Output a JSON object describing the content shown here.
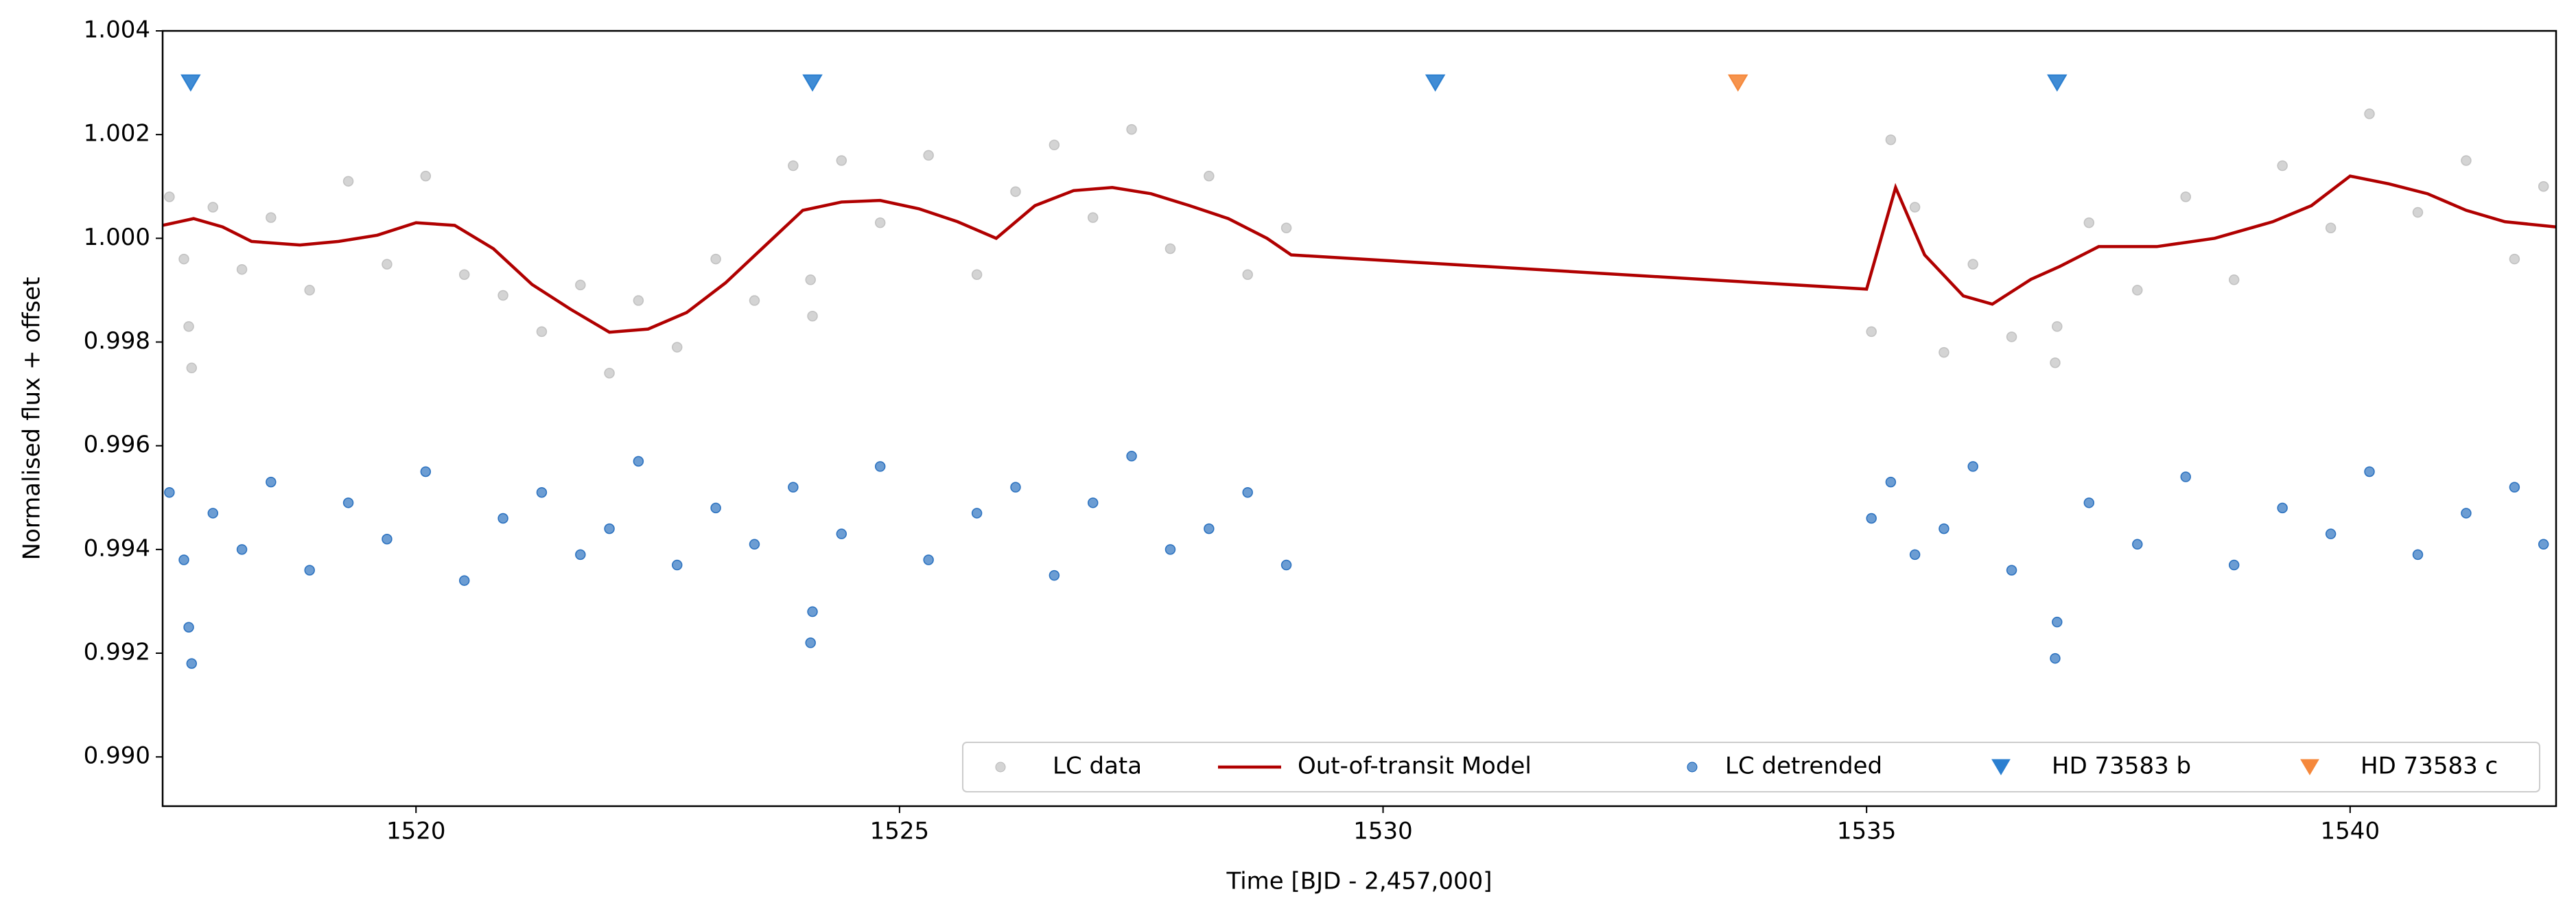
{
  "chart_data": {
    "type": "scatter",
    "xlabel": "Time [BJD - 2,457,000]",
    "ylabel": "Normalised flux + offset",
    "xlim": [
      1517.38,
      1542.13
    ],
    "ylim": [
      0.98905,
      1.004
    ],
    "xticks": [
      1520,
      1525,
      1530,
      1535,
      1540
    ],
    "yticks": [
      {
        "value": 0.99,
        "label": "0.990"
      },
      0.992,
      0.994,
      0.996,
      0.998,
      {
        "value": 1,
        "label": "1.000"
      },
      1.002,
      1.004
    ],
    "grid": false,
    "legend": "lower right",
    "series": [
      {
        "name": "LC data",
        "type": "scatter",
        "color": "#b8b8b8",
        "x": [
          1517.45,
          1517.6,
          1517.65,
          1517.68,
          1517.9,
          1518.2,
          1518.5,
          1518.9,
          1519.3,
          1519.7,
          1520.1,
          1520.5,
          1520.9,
          1521.3,
          1521.7,
          1522.0,
          1522.3,
          1522.7,
          1523.1,
          1523.5,
          1523.9,
          1524.08,
          1524.1,
          1524.4,
          1524.8,
          1525.3,
          1525.8,
          1526.2,
          1526.6,
          1527.0,
          1527.4,
          1527.8,
          1528.2,
          1528.6,
          1529.0,
          1535.05,
          1535.25,
          1535.5,
          1535.8,
          1536.1,
          1536.5,
          1536.95,
          1536.97,
          1537.3,
          1537.8,
          1538.3,
          1538.8,
          1539.3,
          1539.8,
          1540.2,
          1540.7,
          1541.2,
          1541.7,
          1542.0
        ],
        "values": [
          1.0008,
          0.9996,
          0.9983,
          0.9975,
          1.0006,
          0.9994,
          1.0004,
          0.999,
          1.0011,
          0.9995,
          1.0012,
          0.9993,
          0.9989,
          0.9982,
          0.9991,
          0.9974,
          0.9988,
          0.9979,
          0.9996,
          0.9988,
          1.0014,
          0.9992,
          0.9985,
          1.0015,
          1.0003,
          1.0016,
          0.9993,
          1.0009,
          1.0018,
          1.0004,
          1.0021,
          0.9998,
          1.0012,
          0.9993,
          1.0002,
          0.9982,
          1.0019,
          1.0006,
          0.9978,
          0.9995,
          0.9981,
          0.9976,
          0.9983,
          1.0003,
          0.999,
          1.0008,
          0.9992,
          1.0014,
          1.0002,
          1.0024,
          1.0005,
          1.0015,
          0.9996,
          1.001
        ]
      },
      {
        "name": "Out-of-transit Model",
        "type": "line",
        "color": "#b00000",
        "x": [
          1517.38,
          1517.7,
          1518.0,
          1518.3,
          1518.8,
          1519.2,
          1519.6,
          1520.0,
          1520.4,
          1520.8,
          1521.2,
          1521.6,
          1522.0,
          1522.4,
          1522.8,
          1523.2,
          1523.6,
          1524.0,
          1524.4,
          1524.8,
          1525.2,
          1525.6,
          1526.0,
          1526.4,
          1526.8,
          1527.2,
          1527.6,
          1528.0,
          1528.4,
          1528.8,
          1529.05,
          1535.0,
          1535.3,
          1535.6,
          1536.0,
          1536.3,
          1536.7,
          1537.0,
          1537.4,
          1538.0,
          1538.6,
          1539.2,
          1539.6,
          1540.0,
          1540.4,
          1540.8,
          1541.2,
          1541.6,
          1542.13
        ],
        "values": [
          1.00025,
          1.00038,
          1.00022,
          0.99994,
          0.99987,
          0.99994,
          1.00006,
          1.0003,
          1.00025,
          0.9998,
          0.99911,
          0.99863,
          0.99819,
          0.99825,
          0.99857,
          0.99914,
          0.99984,
          1.00054,
          1.0007,
          1.00073,
          1.00057,
          1.00032,
          1.0,
          1.00063,
          1.00092,
          1.00098,
          1.00086,
          1.00063,
          1.00038,
          1.0,
          0.99968,
          0.99902,
          1.00098,
          0.99968,
          0.99889,
          0.99873,
          0.99921,
          0.99946,
          0.99984,
          0.99984,
          1.0,
          1.00032,
          1.00063,
          1.0012,
          1.00105,
          1.00086,
          1.00054,
          1.00032,
          1.00022
        ]
      },
      {
        "name": "LC detrended",
        "type": "scatter",
        "color": "#0a5bb5",
        "x": [
          1517.45,
          1517.6,
          1517.65,
          1517.68,
          1517.9,
          1518.2,
          1518.5,
          1518.9,
          1519.3,
          1519.7,
          1520.1,
          1520.5,
          1520.9,
          1521.3,
          1521.7,
          1522.0,
          1522.3,
          1522.7,
          1523.1,
          1523.5,
          1523.9,
          1524.08,
          1524.1,
          1524.4,
          1524.8,
          1525.3,
          1525.8,
          1526.2,
          1526.6,
          1527.0,
          1527.4,
          1527.8,
          1528.2,
          1528.6,
          1529.0,
          1535.05,
          1535.25,
          1535.5,
          1535.8,
          1536.1,
          1536.5,
          1536.95,
          1536.97,
          1537.3,
          1537.8,
          1538.3,
          1538.8,
          1539.3,
          1539.8,
          1540.2,
          1540.7,
          1541.2,
          1541.7,
          1542.0
        ],
        "values": [
          0.9951,
          0.9938,
          0.9925,
          0.9918,
          0.9947,
          0.994,
          0.9953,
          0.9936,
          0.9949,
          0.9942,
          0.9955,
          0.9934,
          0.9946,
          0.9951,
          0.9939,
          0.9944,
          0.9957,
          0.9937,
          0.9948,
          0.9941,
          0.9952,
          0.9922,
          0.9928,
          0.9943,
          0.9956,
          0.9938,
          0.9947,
          0.9952,
          0.9935,
          0.9949,
          0.9958,
          0.994,
          0.9944,
          0.9951,
          0.9937,
          0.9946,
          0.9953,
          0.9939,
          0.9944,
          0.9956,
          0.9936,
          0.9919,
          0.9926,
          0.9949,
          0.9941,
          0.9954,
          0.9937,
          0.9948,
          0.9943,
          0.9955,
          0.9939,
          0.9947,
          0.9952,
          0.9941
        ]
      },
      {
        "name": "HD 73583 b",
        "type": "marker",
        "color": "#2b7fd0",
        "x": [
          1517.67,
          1524.1,
          1530.54,
          1536.97
        ],
        "values": [
          1.003,
          1.003,
          1.003,
          1.003
        ]
      },
      {
        "name": "HD 73583 c",
        "type": "marker",
        "color": "#f5883b",
        "x": [
          1533.67
        ],
        "values": [
          1.003
        ]
      }
    ]
  }
}
